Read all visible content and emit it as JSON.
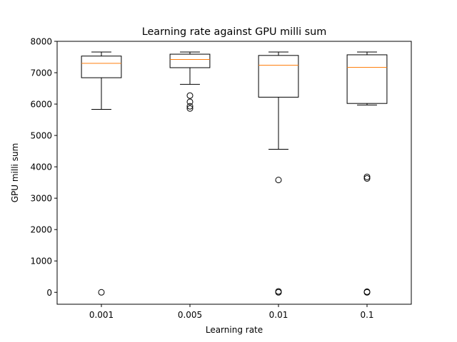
{
  "chart_data": {
    "type": "box",
    "title": "Learning rate against GPU milli sum",
    "xlabel": "Learning rate",
    "ylabel": "GPU milli sum",
    "ylim": [
      -380,
      8000
    ],
    "yticks": [
      0,
      1000,
      2000,
      3000,
      4000,
      5000,
      6000,
      7000,
      8000
    ],
    "grid": false,
    "categories": [
      "0.001",
      "0.005",
      "0.01",
      "0.1"
    ],
    "boxes": [
      {
        "whisker_low": 5830,
        "q1": 6840,
        "median": 7300,
        "q3": 7530,
        "whisker_high": 7660,
        "outliers": [
          0
        ]
      },
      {
        "whisker_low": 6630,
        "q1": 7160,
        "median": 7420,
        "q3": 7590,
        "whisker_high": 7660,
        "outliers": [
          6270,
          6070,
          5930,
          5860
        ]
      },
      {
        "whisker_low": 4560,
        "q1": 6220,
        "median": 7240,
        "q3": 7550,
        "whisker_high": 7660,
        "outliers": [
          3580,
          30,
          0
        ]
      },
      {
        "whisker_low": 5970,
        "q1": 6020,
        "median": 7170,
        "q3": 7570,
        "whisker_high": 7660,
        "outliers": [
          3680,
          3630,
          20,
          0
        ]
      }
    ],
    "colors": {
      "box": "#000000",
      "median": "#ff7f0e"
    }
  }
}
